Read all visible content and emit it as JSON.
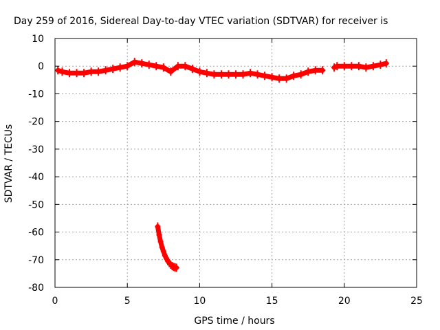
{
  "chart_data": {
    "type": "scatter",
    "title": "Day 259 of 2016, Sidereal Day-to-day VTEC variation (SDTVAR) for receiver is",
    "xlabel": "GPS time / hours",
    "ylabel": "SDTVAR / TECUs",
    "xlim": [
      0,
      25
    ],
    "ylim": [
      -80,
      10
    ],
    "xticks": [
      0,
      5,
      10,
      15,
      20,
      25
    ],
    "yticks": [
      10,
      0,
      -10,
      -20,
      -30,
      -40,
      -50,
      -60,
      -70,
      -80
    ],
    "grid": true,
    "point_color": "#ff0000",
    "series": [
      {
        "x": [
          0.2,
          0.5,
          1.0,
          1.5,
          2.0,
          2.5,
          3.0,
          3.5,
          4.0,
          4.5,
          5.0,
          5.5,
          6.0,
          6.5,
          7.0,
          7.5,
          8.0,
          8.5,
          9.0,
          9.5,
          10.0,
          10.5,
          11.0,
          11.5,
          12.0,
          12.5,
          13.0,
          13.5,
          14.0,
          14.5,
          15.0,
          15.5,
          16.0,
          16.5,
          17.0,
          17.5,
          18.0,
          18.5
        ],
        "y": [
          -1.5,
          -2.0,
          -2.5,
          -2.5,
          -2.5,
          -2.0,
          -2.0,
          -1.5,
          -1.0,
          -0.5,
          0.0,
          1.5,
          1.0,
          0.5,
          0.0,
          -0.5,
          -2.0,
          0.0,
          0.0,
          -1.0,
          -2.0,
          -2.5,
          -3.0,
          -3.0,
          -3.0,
          -3.0,
          -3.0,
          -2.5,
          -3.0,
          -3.5,
          -4.0,
          -4.5,
          -4.5,
          -3.5,
          -3.0,
          -2.0,
          -1.5,
          -1.5
        ]
      },
      {
        "x": [
          7.1,
          7.2,
          7.3,
          7.4,
          7.5,
          7.6,
          7.7,
          7.8,
          7.9,
          8.0,
          8.1,
          8.2,
          8.3,
          8.4
        ],
        "y": [
          -58.0,
          -61.0,
          -63.5,
          -65.5,
          -67.0,
          -68.5,
          -69.5,
          -70.5,
          -71.2,
          -71.8,
          -72.3,
          -72.6,
          -72.8,
          -72.9
        ]
      },
      {
        "x": [
          19.3,
          19.5,
          20.0,
          20.5,
          21.0,
          21.5,
          22.0,
          22.5,
          22.9
        ],
        "y": [
          -0.5,
          0.0,
          0.0,
          0.0,
          0.0,
          -0.5,
          0.0,
          0.5,
          1.0
        ]
      }
    ]
  }
}
